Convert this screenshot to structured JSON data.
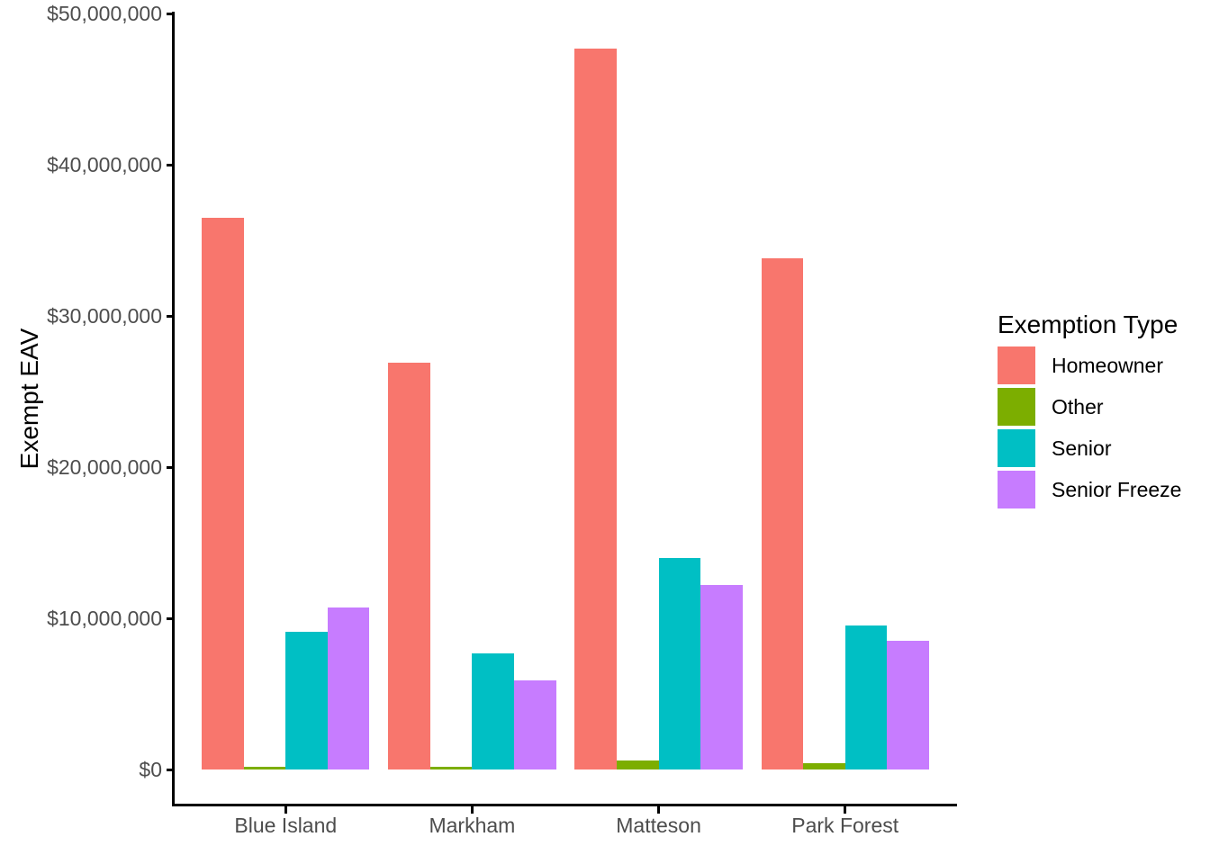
{
  "chart_data": {
    "type": "bar",
    "mode": "grouped",
    "title": "",
    "ylabel": "Exempt EAV",
    "xlabel": "",
    "legend_title": "Exemption Type",
    "legend_position": "right",
    "grid": false,
    "background": "#FFFFFF",
    "axis_text_color": "#4D4D4D",
    "axis_line_color": "#000000",
    "categories": [
      "Blue Island",
      "Markham",
      "Matteson",
      "Park Forest"
    ],
    "series": [
      {
        "name": "Homeowner",
        "color": "#F8766D",
        "values": [
          36500000,
          26900000,
          47700000,
          33800000
        ]
      },
      {
        "name": "Other",
        "color": "#7CAE00",
        "values": [
          200000,
          200000,
          600000,
          400000
        ]
      },
      {
        "name": "Senior",
        "color": "#00BFC4",
        "values": [
          9100000,
          7700000,
          14000000,
          9500000
        ]
      },
      {
        "name": "Senior Freeze",
        "color": "#C77CFF",
        "values": [
          10700000,
          5900000,
          12200000,
          8500000
        ]
      }
    ],
    "ylim": [
      0,
      50000000
    ],
    "yticks": [
      0,
      10000000,
      20000000,
      30000000,
      40000000,
      50000000
    ],
    "ytick_labels": [
      "$0",
      "$10,000,000",
      "$20,000,000",
      "$30,000,000",
      "$40,000,000",
      "$50,000,000"
    ]
  }
}
